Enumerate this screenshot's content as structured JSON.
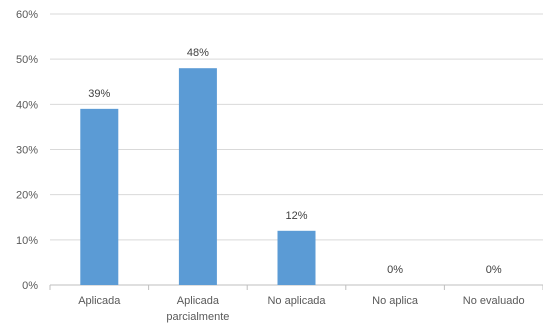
{
  "chart_data": {
    "type": "bar",
    "categories": [
      [
        "Aplicada"
      ],
      [
        "Aplicada",
        "parcialmente"
      ],
      [
        "No aplicada"
      ],
      [
        "No aplica"
      ],
      [
        "No evaluado"
      ]
    ],
    "values": [
      39,
      48,
      12,
      0,
      0
    ],
    "data_labels": [
      "39%",
      "48%",
      "12%",
      "0%",
      "0%"
    ],
    "y_ticks": [
      "0%",
      "10%",
      "20%",
      "30%",
      "40%",
      "50%",
      "60%"
    ],
    "ylim": [
      0,
      60
    ],
    "grid": true,
    "legend": "none",
    "title": "",
    "xlabel": "",
    "ylabel": "",
    "colors": {
      "bar": "#5b9bd5",
      "grid": "#d9d9d9",
      "axis": "#bfbfbf",
      "text": "#595959"
    }
  }
}
